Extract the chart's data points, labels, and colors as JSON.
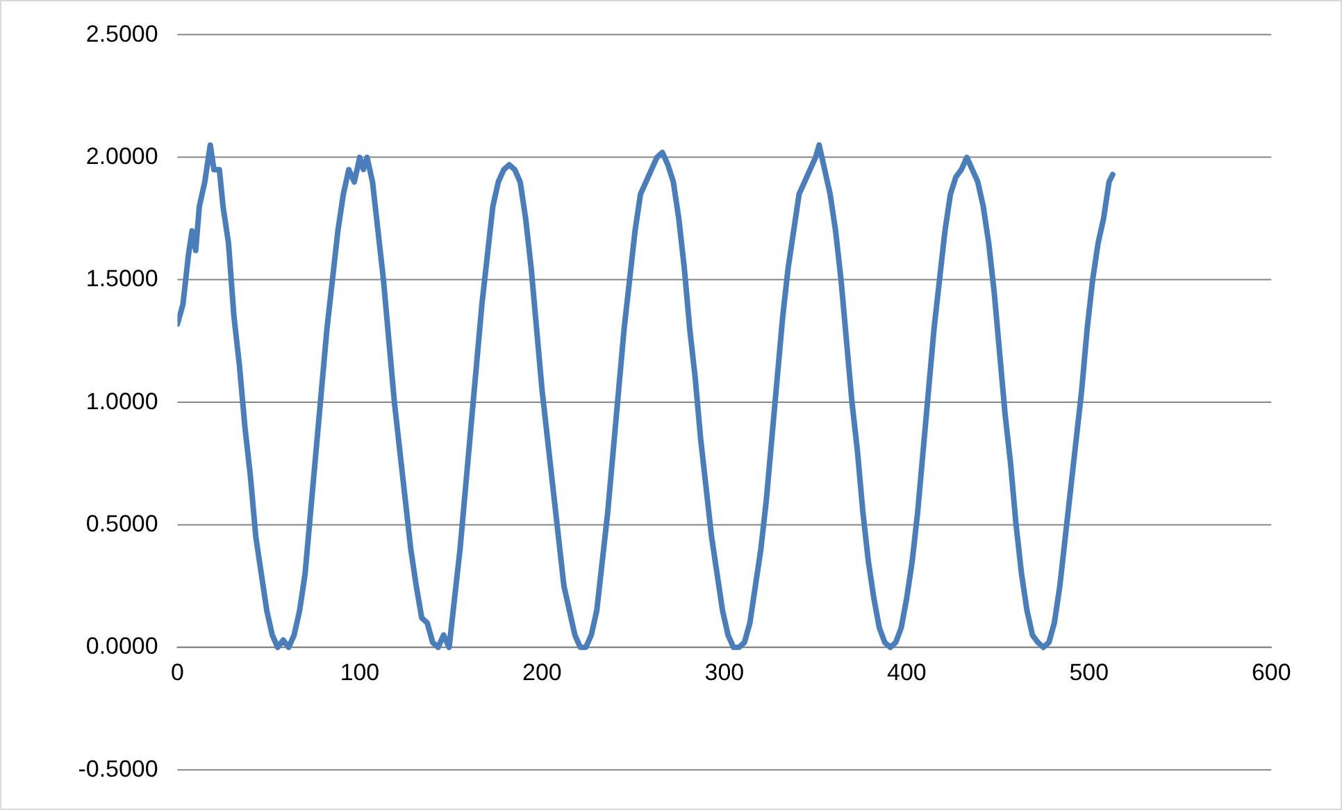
{
  "chart_data": {
    "type": "line",
    "x": [
      0,
      3,
      6,
      8,
      10,
      12,
      15,
      18,
      20,
      23,
      25,
      28,
      31,
      34,
      37,
      40,
      43,
      46,
      49,
      52,
      55,
      58,
      61,
      64,
      67,
      70,
      73,
      76,
      79,
      82,
      85,
      88,
      91,
      94,
      97,
      100,
      102,
      104,
      107,
      110,
      113,
      116,
      119,
      122,
      125,
      128,
      131,
      134,
      137,
      140,
      143,
      146,
      149,
      152,
      155,
      158,
      161,
      164,
      167,
      170,
      173,
      176,
      179,
      182,
      185,
      188,
      191,
      194,
      197,
      200,
      203,
      206,
      209,
      212,
      215,
      218,
      221,
      224,
      227,
      230,
      233,
      236,
      239,
      242,
      245,
      248,
      251,
      254,
      257,
      260,
      263,
      266,
      269,
      272,
      275,
      278,
      281,
      284,
      287,
      290,
      293,
      296,
      299,
      302,
      305,
      308,
      311,
      314,
      317,
      320,
      323,
      326,
      329,
      332,
      335,
      338,
      341,
      344,
      347,
      350,
      352,
      355,
      358,
      361,
      364,
      367,
      370,
      373,
      376,
      379,
      382,
      385,
      388,
      391,
      394,
      397,
      400,
      403,
      406,
      409,
      412,
      415,
      418,
      421,
      424,
      427,
      430,
      433,
      436,
      439,
      442,
      445,
      448,
      451,
      454,
      457,
      460,
      463,
      466,
      469,
      472,
      475,
      478,
      481,
      484,
      487,
      490,
      493,
      496,
      499,
      502,
      505,
      508,
      511,
      513
    ],
    "series": [
      {
        "color": "#4a7ebb",
        "values": [
          1.32,
          1.4,
          1.6,
          1.7,
          1.62,
          1.8,
          1.9,
          2.05,
          1.95,
          1.95,
          1.8,
          1.65,
          1.35,
          1.15,
          0.9,
          0.7,
          0.45,
          0.3,
          0.15,
          0.05,
          0,
          0.03,
          0,
          0.05,
          0.15,
          0.3,
          0.55,
          0.8,
          1.05,
          1.3,
          1.5,
          1.7,
          1.85,
          1.95,
          1.9,
          2,
          1.95,
          2,
          1.9,
          1.7,
          1.5,
          1.25,
          1,
          0.8,
          0.6,
          0.4,
          0.25,
          0.12,
          0.1,
          0.02,
          0,
          0.05,
          0,
          0.2,
          0.4,
          0.65,
          0.9,
          1.15,
          1.4,
          1.6,
          1.8,
          1.9,
          1.95,
          1.97,
          1.95,
          1.9,
          1.75,
          1.55,
          1.3,
          1.05,
          0.85,
          0.65,
          0.45,
          0.25,
          0.15,
          0.05,
          0,
          0,
          0.05,
          0.15,
          0.35,
          0.55,
          0.8,
          1.05,
          1.3,
          1.5,
          1.7,
          1.85,
          1.9,
          1.95,
          2,
          2.02,
          1.97,
          1.9,
          1.75,
          1.55,
          1.3,
          1.1,
          0.85,
          0.65,
          0.45,
          0.3,
          0.15,
          0.05,
          0,
          0,
          0.02,
          0.1,
          0.25,
          0.4,
          0.6,
          0.85,
          1.1,
          1.35,
          1.55,
          1.7,
          1.85,
          1.9,
          1.95,
          2,
          2.05,
          1.95,
          1.85,
          1.7,
          1.5,
          1.25,
          1,
          0.8,
          0.55,
          0.35,
          0.2,
          0.08,
          0.02,
          0,
          0.02,
          0.08,
          0.2,
          0.35,
          0.55,
          0.8,
          1.05,
          1.3,
          1.5,
          1.7,
          1.85,
          1.92,
          1.95,
          2,
          1.95,
          1.9,
          1.8,
          1.65,
          1.45,
          1.2,
          0.95,
          0.75,
          0.5,
          0.3,
          0.15,
          0.05,
          0.02,
          0,
          0.02,
          0.1,
          0.25,
          0.45,
          0.65,
          0.85,
          1.05,
          1.3,
          1.5,
          1.65,
          1.75,
          1.9,
          1.93
        ]
      }
    ],
    "xlim": [
      0,
      600
    ],
    "xticks": [
      0,
      100,
      200,
      300,
      400,
      500,
      600
    ],
    "ylim": [
      -0.5,
      2.5
    ],
    "yticks": [
      {
        "value": -0.5,
        "label": "-0.5000"
      },
      {
        "value": 0,
        "label": "0.0000"
      },
      {
        "value": 0.5,
        "label": "0.5000"
      },
      {
        "value": 1,
        "label": "1.0000"
      },
      {
        "value": 1.5,
        "label": "1.5000"
      },
      {
        "value": 2,
        "label": "2.0000"
      },
      {
        "value": 2.5,
        "label": "2.5000"
      }
    ],
    "grid": "y",
    "legend": false,
    "marker": "none",
    "line_style": "solid"
  }
}
